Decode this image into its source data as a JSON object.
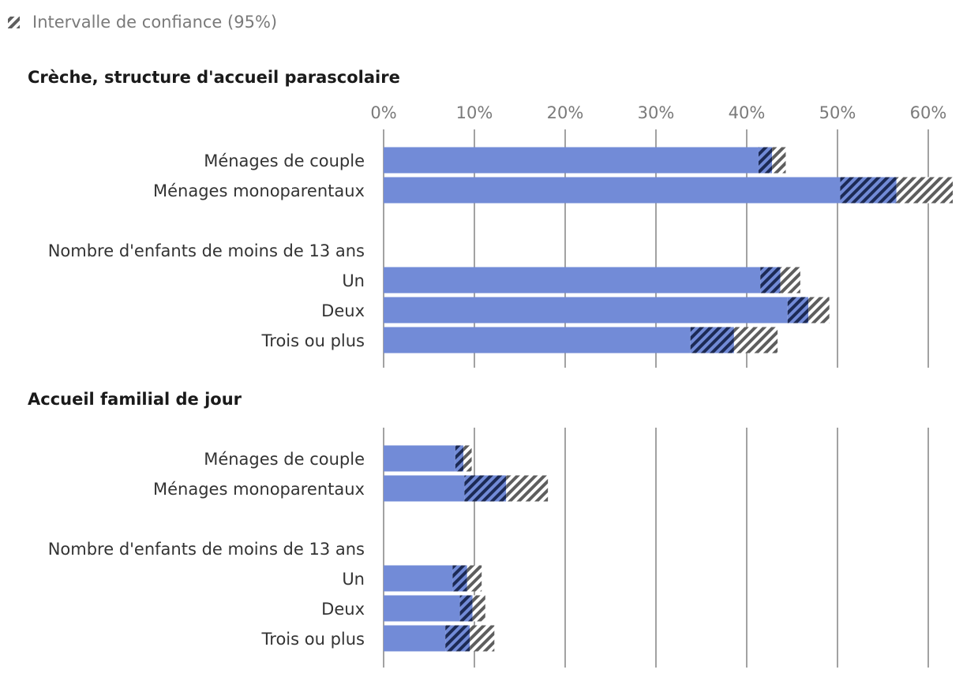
{
  "chart_data": {
    "type": "bar",
    "orientation": "horizontal",
    "legend": {
      "label": "Intervalle de confiance (95%)",
      "placement": "top-left"
    },
    "xlim": [
      0,
      62
    ],
    "ticks": [
      "0%",
      "10%",
      "20%",
      "30%",
      "40%",
      "50%",
      "60%"
    ],
    "tick_values": [
      0,
      10,
      20,
      30,
      40,
      50,
      60
    ],
    "colors": {
      "bar": "#728bd7",
      "ci_dark": "#1c2a55",
      "ci_light": "#5e5e5e"
    },
    "panels": [
      {
        "title": "Crèche, structure d'accueil parascolaire",
        "group_heading": "Nombre d'enfants de moins de 13 ans",
        "items": [
          {
            "label": "Ménages de couple",
            "value": 42.8,
            "ci": [
              41.3,
              44.3
            ]
          },
          {
            "label": "Ménages monoparentaux",
            "value": 56.5,
            "ci": [
              50.3,
              62.7
            ]
          },
          {
            "label": "Un",
            "value": 43.7,
            "ci": [
              41.5,
              45.9
            ]
          },
          {
            "label": "Deux",
            "value": 46.8,
            "ci": [
              44.5,
              49.1
            ]
          },
          {
            "label": "Trois ou plus",
            "value": 38.6,
            "ci": [
              33.8,
              43.4
            ]
          }
        ]
      },
      {
        "title": "Accueil familial de jour",
        "group_heading": "Nombre d'enfants de moins de 13 ans",
        "items": [
          {
            "label": "Ménages de couple",
            "value": 8.8,
            "ci": [
              7.9,
              9.7
            ]
          },
          {
            "label": "Ménages monoparentaux",
            "value": 13.5,
            "ci": [
              8.9,
              18.1
            ]
          },
          {
            "label": "Un",
            "value": 9.2,
            "ci": [
              7.6,
              10.8
            ]
          },
          {
            "label": "Deux",
            "value": 9.8,
            "ci": [
              8.4,
              11.2
            ]
          },
          {
            "label": "Trois ou plus",
            "value": 9.5,
            "ci": [
              6.8,
              12.2
            ]
          }
        ]
      }
    ]
  }
}
